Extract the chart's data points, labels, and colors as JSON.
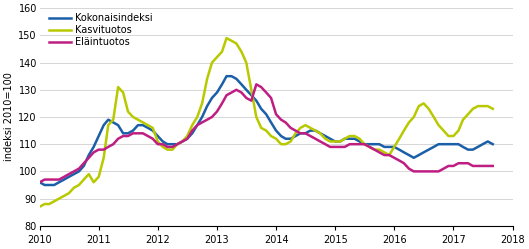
{
  "title": "",
  "ylabel": "indeksi 2010=100",
  "ylim": [
    80,
    160
  ],
  "yticks": [
    80,
    90,
    100,
    110,
    120,
    130,
    140,
    150,
    160
  ],
  "xtick_labels": [
    "2010",
    "2011",
    "2012",
    "2013",
    "2014",
    "2015",
    "2016",
    "2017",
    "2018"
  ],
  "legend_labels": [
    "Kokonaisindeksi",
    "Kasvituotos",
    "Eläintuotos"
  ],
  "colors": {
    "kokonais": "#1a5fa8",
    "kasvi": "#b8c900",
    "elain": "#be1e82"
  },
  "linewidth": 1.8,
  "kokonaisindeksi": [
    96,
    95,
    95,
    95,
    96,
    97,
    98,
    99,
    100,
    102,
    106,
    109,
    113,
    117,
    119,
    118,
    117,
    114,
    114,
    115,
    117,
    117,
    116,
    115,
    113,
    111,
    110,
    110,
    110,
    111,
    112,
    114,
    117,
    120,
    124,
    127,
    129,
    132,
    135,
    135,
    134,
    132,
    130,
    128,
    126,
    123,
    121,
    118,
    115,
    113,
    112,
    112,
    113,
    114,
    114,
    115,
    115,
    114,
    113,
    112,
    111,
    111,
    112,
    112,
    112,
    111,
    110,
    110,
    110,
    110,
    109,
    109,
    109,
    108,
    107,
    106,
    105,
    106,
    107,
    108,
    109,
    110,
    110,
    110,
    110,
    110,
    109,
    108,
    108,
    109,
    110,
    111,
    110
  ],
  "kasvituotos": [
    87,
    88,
    88,
    89,
    90,
    91,
    92,
    94,
    95,
    97,
    99,
    96,
    98,
    105,
    117,
    119,
    131,
    129,
    122,
    120,
    119,
    118,
    117,
    116,
    111,
    109,
    108,
    108,
    110,
    111,
    113,
    117,
    120,
    125,
    134,
    140,
    142,
    144,
    149,
    148,
    147,
    144,
    140,
    130,
    120,
    116,
    115,
    113,
    112,
    110,
    110,
    111,
    114,
    116,
    117,
    116,
    115,
    114,
    112,
    111,
    111,
    111,
    112,
    113,
    113,
    112,
    110,
    109,
    108,
    108,
    107,
    106,
    109,
    112,
    115,
    118,
    120,
    124,
    125,
    123,
    120,
    117,
    115,
    113,
    113,
    115,
    119,
    121,
    123,
    124,
    124,
    124,
    123
  ],
  "elaituotos": [
    96,
    97,
    97,
    97,
    97,
    98,
    99,
    100,
    101,
    103,
    105,
    107,
    108,
    108,
    109,
    110,
    112,
    113,
    113,
    114,
    114,
    114,
    113,
    112,
    110,
    110,
    109,
    109,
    110,
    111,
    112,
    115,
    117,
    118,
    119,
    120,
    122,
    125,
    128,
    129,
    130,
    129,
    127,
    126,
    132,
    131,
    129,
    127,
    121,
    119,
    118,
    116,
    115,
    114,
    114,
    113,
    112,
    111,
    110,
    109,
    109,
    109,
    109,
    110,
    110,
    110,
    110,
    109,
    108,
    107,
    106,
    106,
    105,
    104,
    103,
    101,
    100,
    100,
    100,
    100,
    100,
    100,
    101,
    102,
    102,
    103,
    103,
    103,
    102,
    102,
    102,
    102,
    102
  ]
}
